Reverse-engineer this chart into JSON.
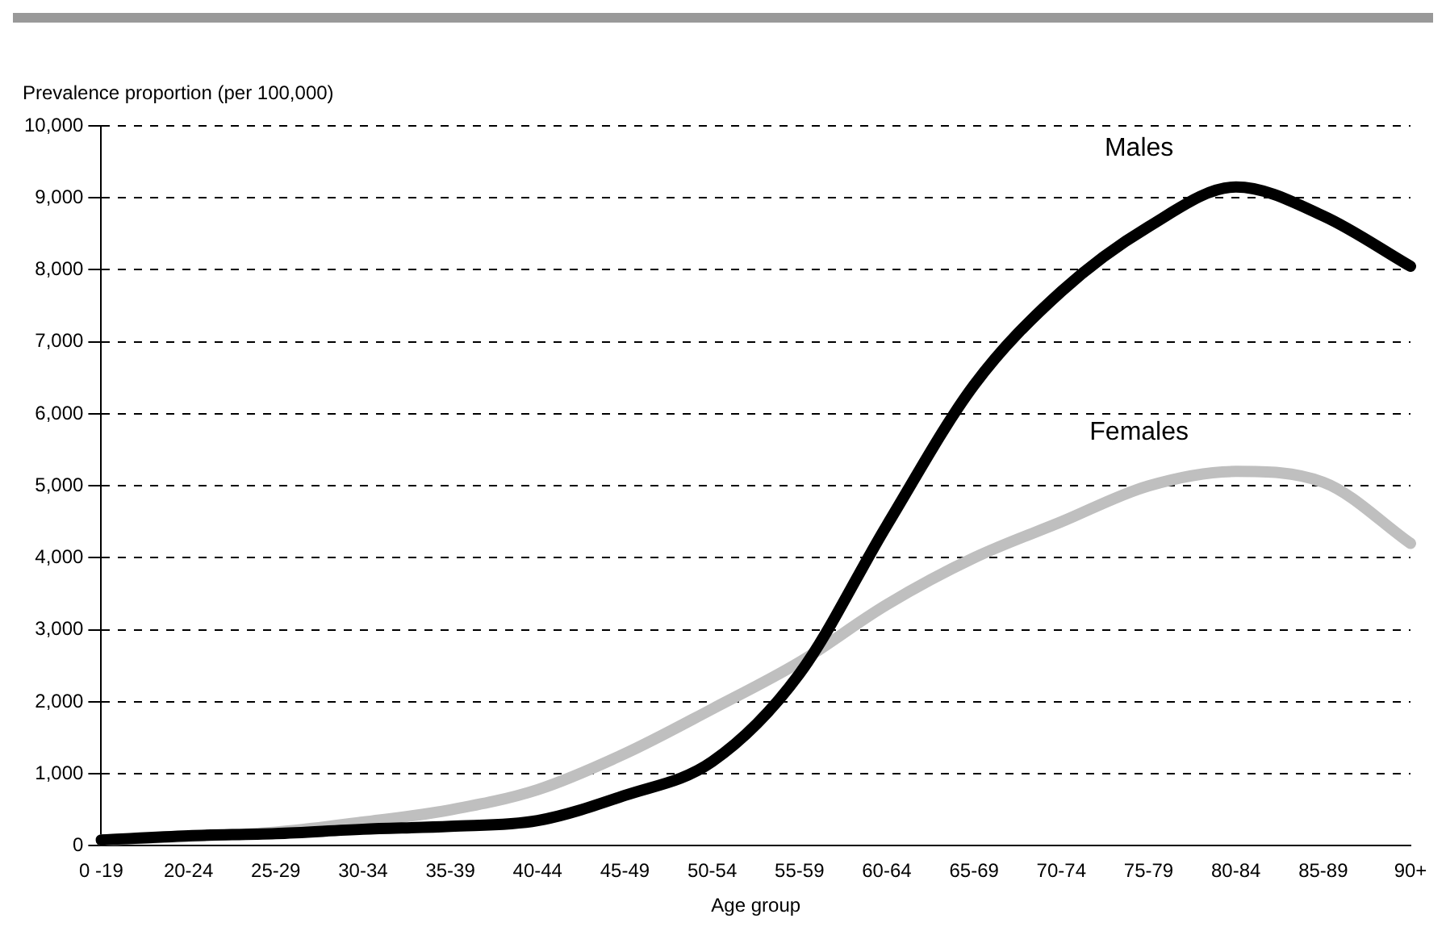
{
  "chart_data": {
    "type": "line",
    "ylabel": "Prevalence proportion (per 100,000)",
    "xlabel": "Age group",
    "categories": [
      "0 -19",
      "20-24",
      "25-29",
      "30-34",
      "35-39",
      "40-44",
      "45-49",
      "50-54",
      "55-59",
      "60-64",
      "65-69",
      "70-74",
      "75-79",
      "80-84",
      "85-89",
      "90+"
    ],
    "series": [
      {
        "name": "Males",
        "color": "#000000",
        "values": [
          80,
          140,
          170,
          230,
          270,
          350,
          700,
          1170,
          2390,
          4450,
          6400,
          7700,
          8600,
          9150,
          8750,
          8050
        ]
      },
      {
        "name": "Females",
        "color": "#bfbfbf",
        "values": [
          80,
          130,
          190,
          330,
          500,
          780,
          1280,
          1900,
          2550,
          3350,
          4000,
          4500,
          5000,
          5200,
          5050,
          4200
        ]
      }
    ],
    "ylim": [
      0,
      10000
    ],
    "yticks": [
      0,
      {
        "value": 1000,
        "label": "1,000"
      },
      {
        "value": 2000,
        "label": "2,000"
      },
      {
        "value": 3000,
        "label": "3,000"
      },
      {
        "value": 4000,
        "label": "4,000"
      },
      {
        "value": 5000,
        "label": "5,000"
      },
      {
        "value": 6000,
        "label": "6,000"
      },
      {
        "value": 7000,
        "label": "7,000"
      },
      {
        "value": 8000,
        "label": "8,000"
      },
      {
        "value": 9000,
        "label": "9,000"
      },
      {
        "value": 10000,
        "label": "10,000"
      }
    ],
    "grid": "y",
    "legend": false,
    "line_style": "solid",
    "marker": "none"
  }
}
